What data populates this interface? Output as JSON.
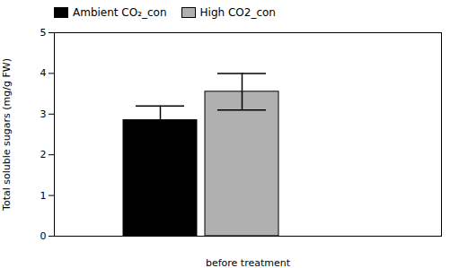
{
  "chart_data": {
    "type": "bar",
    "xlabel": "before treatment",
    "ylabel": "Total soluble sugars (mg/g FW)",
    "categories": [
      null
    ],
    "series": [
      {
        "name": "Ambient CO₂_con",
        "color": "#000000",
        "values": [
          2.85
        ],
        "errors": [
          0.35
        ]
      },
      {
        "name": "High CO2_con",
        "color": "#b0b0b0",
        "values": [
          3.55
        ],
        "errors": [
          0.45
        ]
      }
    ],
    "ylim": [
      0,
      5
    ],
    "yticks": [
      0,
      1,
      2,
      3,
      4,
      5
    ],
    "legend": "upper left",
    "tick_labels": "y"
  }
}
